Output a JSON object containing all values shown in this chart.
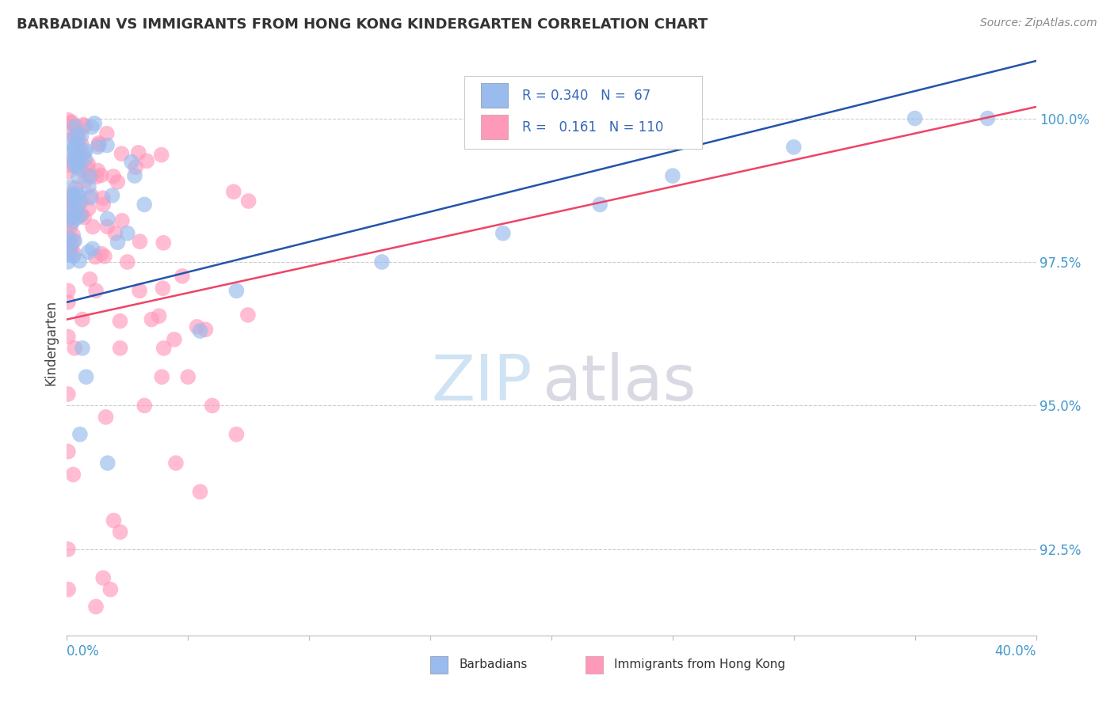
{
  "title": "BARBADIAN VS IMMIGRANTS FROM HONG KONG KINDERGARTEN CORRELATION CHART",
  "source": "Source: ZipAtlas.com",
  "ylabel": "Kindergarten",
  "yvalues": [
    92.5,
    95.0,
    97.5,
    100.0
  ],
  "xlim": [
    0.0,
    40.0
  ],
  "ylim": [
    91.0,
    101.2
  ],
  "R_blue": 0.34,
  "N_blue": 67,
  "R_pink": 0.161,
  "N_pink": 110,
  "legend_labels": [
    "Barbadians",
    "Immigrants from Hong Kong"
  ],
  "blue_color": "#99BBEE",
  "pink_color": "#FF99BB",
  "blue_line_color": "#2255AA",
  "pink_line_color": "#EE4466",
  "watermark_zip_color": "#AACCEE",
  "watermark_atlas_color": "#BBBBCC",
  "background_color": "#FFFFFF",
  "grid_color": "#CCCCCC",
  "blue_trend_y0": 96.8,
  "blue_trend_y1": 101.0,
  "pink_trend_y0": 96.5,
  "pink_trend_y1": 100.2
}
